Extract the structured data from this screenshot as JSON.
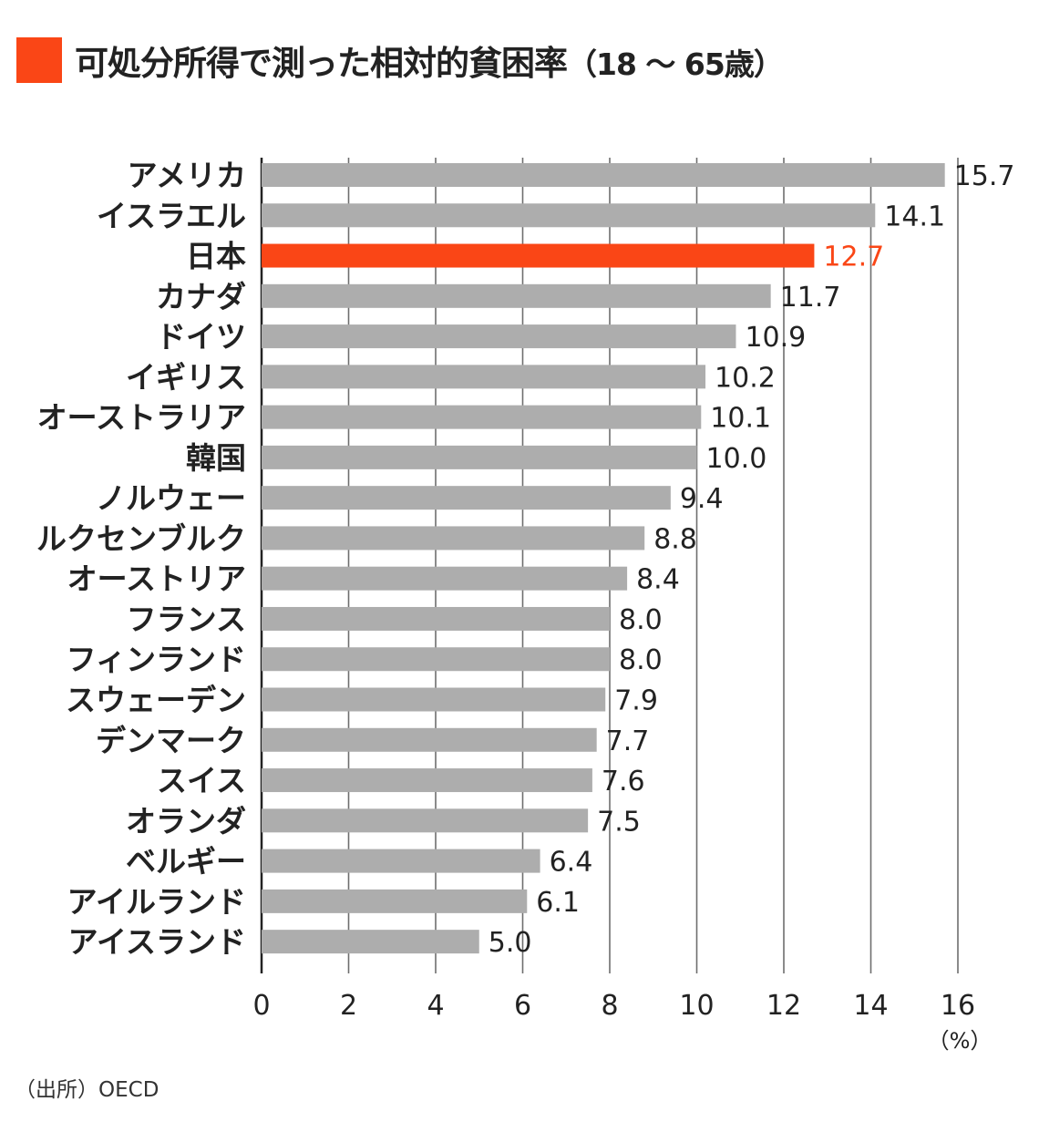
{
  "title": {
    "main": "可処分所得で測った相対的貧困率",
    "sub": "（18 ～ 65歳）"
  },
  "source": "（出所）OECD",
  "colors": {
    "accent": "#fa4616",
    "bar": "#adadad",
    "grid": "#6e6e6e",
    "axis": "#222222"
  },
  "chart_data": {
    "type": "bar",
    "orientation": "horizontal",
    "categories": [
      "アメリカ",
      "イスラエル",
      "日本",
      "カナダ",
      "ドイツ",
      "イギリス",
      "オーストラリア",
      "韓国",
      "ノルウェー",
      "ルクセンブルク",
      "オーストリア",
      "フランス",
      "フィンランド",
      "スウェーデン",
      "デンマーク",
      "スイス",
      "オランダ",
      "ベルギー",
      "アイルランド",
      "アイスランド"
    ],
    "values": [
      15.7,
      14.1,
      12.7,
      11.7,
      10.9,
      10.2,
      10.1,
      10.0,
      9.4,
      8.8,
      8.4,
      8.0,
      8.0,
      7.9,
      7.7,
      7.6,
      7.5,
      6.4,
      6.1,
      5.0
    ],
    "value_labels": [
      "15.7",
      "14.1",
      "12.7",
      "11.7",
      "10.9",
      "10.2",
      "10.1",
      "10.0",
      "9.4",
      "8.8",
      "8.4",
      "8.0",
      "8.0",
      "7.9",
      "7.7",
      "7.6",
      "7.5",
      "6.4",
      "6.1",
      "5.0"
    ],
    "highlight": "日本",
    "xlim": [
      0,
      16
    ],
    "xticks": [
      "0",
      "2",
      "4",
      "6",
      "8",
      "10",
      "12",
      "14",
      "16"
    ],
    "xunit": "（%）",
    "grid": true
  }
}
